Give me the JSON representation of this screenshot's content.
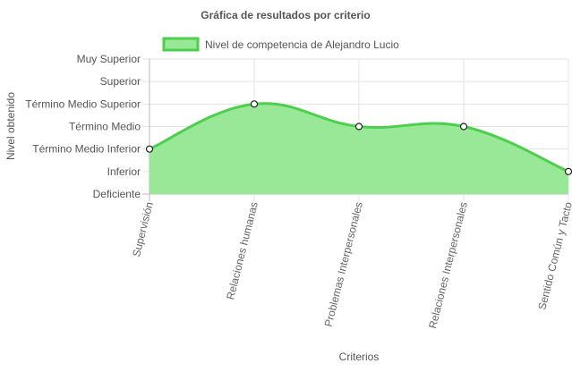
{
  "chart_data": {
    "type": "area",
    "title": "Gráfica de resultados por criterio",
    "xlabel": "Criterios",
    "ylabel": "Nivel obtenido",
    "y_levels": [
      "Deficiente",
      "Inferior",
      "Término Medio Inferior",
      "Término Medio",
      "Término Medio Superior",
      "Superior",
      "Muy Superior"
    ],
    "categories": [
      "Supervisión",
      "Relaciones humanas",
      "Problemas Interpersonales",
      "Relaciones Interpersonales",
      "Sentido Común y Tacto"
    ],
    "series": [
      {
        "name": "Nivel de competencia de Alejandro Lucio",
        "values": [
          2,
          4,
          3,
          3,
          1
        ],
        "color": "#4cd04c",
        "fill": "#98e898"
      }
    ],
    "grid": true,
    "legend": "top"
  }
}
